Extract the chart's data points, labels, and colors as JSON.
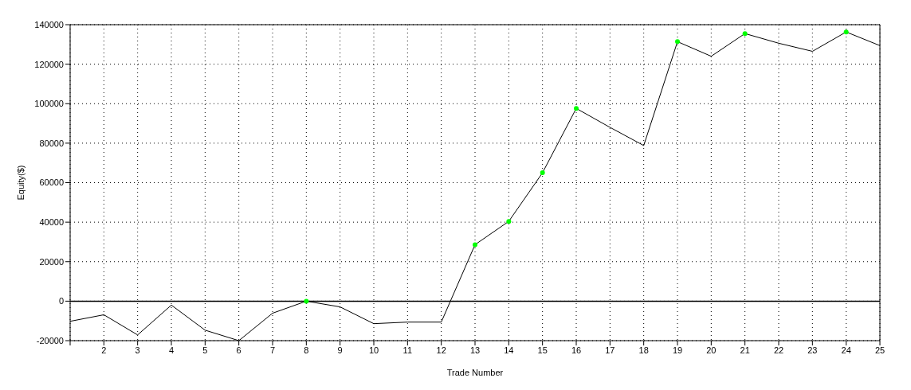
{
  "chart_data": {
    "type": "line",
    "xlabel": "Trade Number",
    "ylabel": "Equity($)",
    "xlim": [
      1,
      25
    ],
    "xticks": [
      {
        "value": 1,
        "label": null
      },
      2,
      3,
      4,
      5,
      6,
      7,
      8,
      9,
      10,
      11,
      12,
      13,
      14,
      15,
      16,
      17,
      18,
      19,
      20,
      21,
      22,
      23,
      24,
      25
    ],
    "ylim": [
      -20000,
      140000
    ],
    "yticks": [
      -20000,
      0,
      20000,
      40000,
      60000,
      80000,
      100000,
      120000,
      140000
    ],
    "grid": true,
    "ref_lines": [
      {
        "axis": "y",
        "value": 0,
        "color": "#000000"
      }
    ],
    "series": [
      {
        "color": "#000000",
        "marker": "none",
        "x": [
          1,
          2,
          3,
          4,
          5,
          6,
          7,
          8,
          9,
          10,
          11,
          12,
          13,
          14,
          15,
          16,
          17,
          18,
          19,
          20,
          21,
          22,
          23,
          24,
          25
        ],
        "values": [
          -10200,
          -6900,
          -17100,
          -2000,
          -14700,
          -20000,
          -6100,
          0,
          -2900,
          -11400,
          -10600,
          -10600,
          28600,
          40400,
          65000,
          97600,
          88000,
          78800,
          131400,
          124000,
          135500,
          130600,
          126500,
          136300,
          129400
        ]
      },
      {
        "type": "scatter",
        "color": "#00ff00",
        "marker": "circle",
        "x": [
          8,
          13,
          14,
          15,
          16,
          19,
          21,
          24
        ],
        "values": [
          0,
          28600,
          40400,
          65000,
          97600,
          131400,
          135500,
          136300
        ]
      }
    ]
  }
}
